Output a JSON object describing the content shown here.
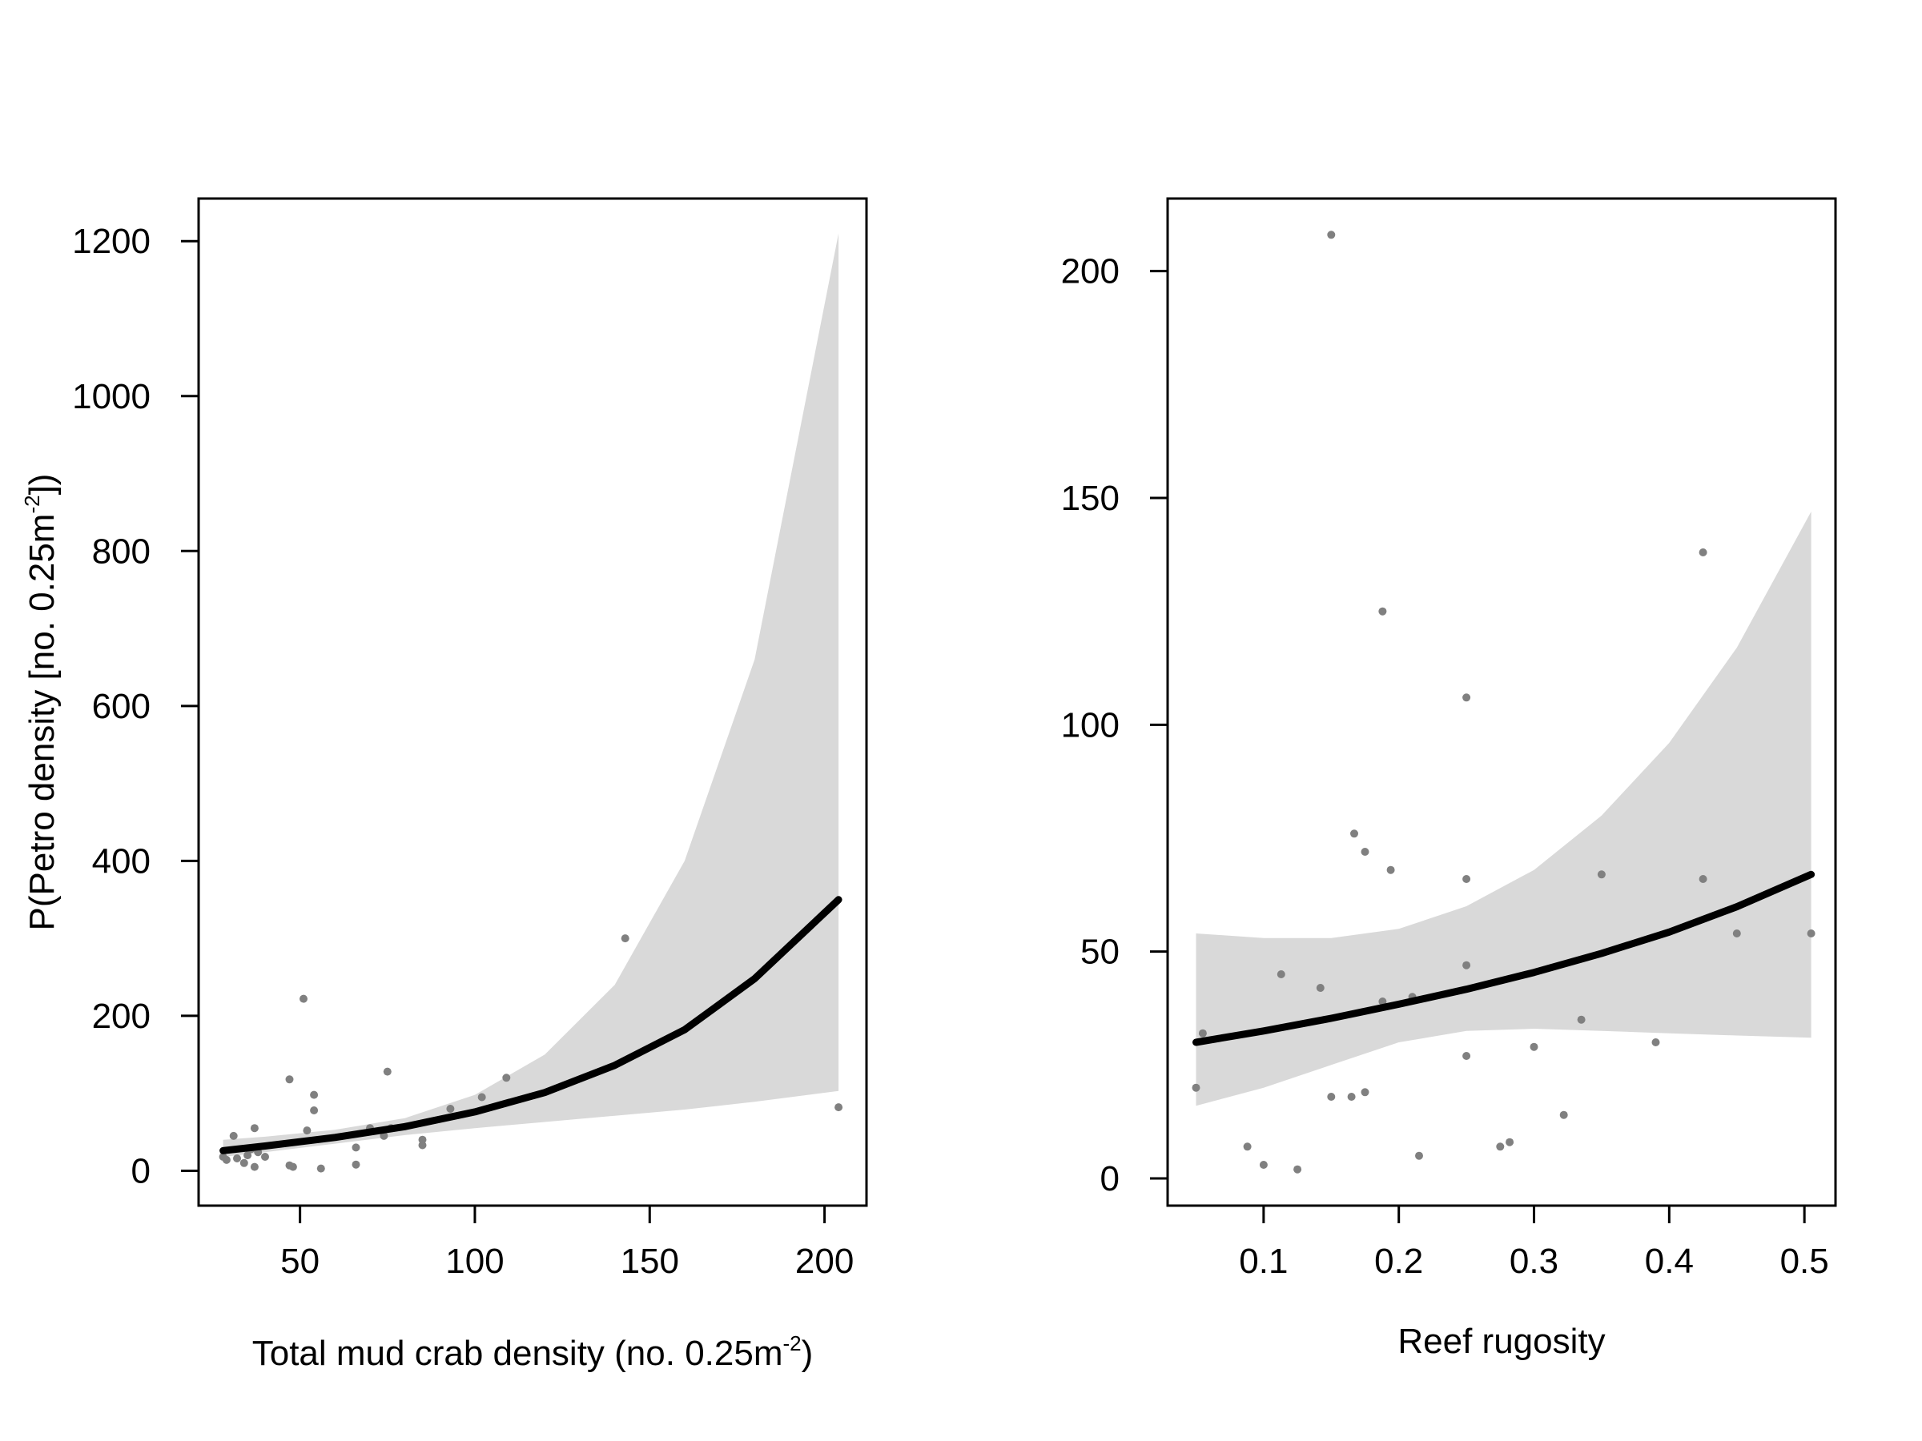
{
  "colors": {
    "band": "#d9d9d9",
    "points": "#808080",
    "curve": "#000000"
  },
  "chart_data": [
    {
      "type": "scatter",
      "title": "",
      "xlabel": "Total mud crab density  (no. 0.25m",
      "xlabel_sup": "-2",
      "xlabel_end": ")",
      "ylabel": "P(Petro density [no. 0.25m",
      "ylabel_sup": "-2",
      "ylabel_end": "])",
      "xlim": [
        21,
        212
      ],
      "ylim": [
        -45,
        1255
      ],
      "xticks": [
        50,
        100,
        150,
        200
      ],
      "yticks": [
        0,
        200,
        400,
        600,
        800,
        1000,
        1200
      ],
      "xtick_labels": [
        "50",
        "100",
        "150",
        "200"
      ],
      "ytick_labels": [
        "0",
        "200",
        "400",
        "600",
        "800",
        "1000",
        "1200"
      ],
      "grid": false,
      "points": [
        {
          "x": 28,
          "y": 18
        },
        {
          "x": 29,
          "y": 14
        },
        {
          "x": 31,
          "y": 45
        },
        {
          "x": 32,
          "y": 16
        },
        {
          "x": 34,
          "y": 10
        },
        {
          "x": 35,
          "y": 20
        },
        {
          "x": 36,
          "y": 28
        },
        {
          "x": 37,
          "y": 55
        },
        {
          "x": 37,
          "y": 5
        },
        {
          "x": 38,
          "y": 24
        },
        {
          "x": 40,
          "y": 18
        },
        {
          "x": 47,
          "y": 118
        },
        {
          "x": 47,
          "y": 7
        },
        {
          "x": 48,
          "y": 5
        },
        {
          "x": 51,
          "y": 222
        },
        {
          "x": 52,
          "y": 52
        },
        {
          "x": 54,
          "y": 98
        },
        {
          "x": 54,
          "y": 78
        },
        {
          "x": 56,
          "y": 3
        },
        {
          "x": 66,
          "y": 30
        },
        {
          "x": 66,
          "y": 8
        },
        {
          "x": 70,
          "y": 55
        },
        {
          "x": 74,
          "y": 45
        },
        {
          "x": 75,
          "y": 128
        },
        {
          "x": 76,
          "y": 55
        },
        {
          "x": 85,
          "y": 40
        },
        {
          "x": 85,
          "y": 33
        },
        {
          "x": 93,
          "y": 80
        },
        {
          "x": 102,
          "y": 95
        },
        {
          "x": 109,
          "y": 120
        },
        {
          "x": 143,
          "y": 300
        },
        {
          "x": 204,
          "y": 82
        }
      ],
      "fit": {
        "x": [
          28,
          40,
          60,
          80,
          100,
          120,
          140,
          160,
          180,
          204
        ],
        "y": [
          26,
          32,
          43,
          57,
          76,
          101,
          136,
          182,
          248,
          350
        ]
      },
      "band": {
        "x": [
          28,
          40,
          60,
          80,
          100,
          120,
          140,
          160,
          180,
          204
        ],
        "lower": [
          18,
          24,
          35,
          46,
          55,
          63,
          71,
          79,
          89,
          103
        ],
        "upper": [
          40,
          44,
          53,
          68,
          98,
          150,
          240,
          400,
          660,
          1210
        ]
      }
    },
    {
      "type": "scatter",
      "title": "",
      "xlabel": "Reef rugosity",
      "ylabel": "",
      "xlim": [
        0.029,
        0.523
      ],
      "ylim": [
        -6,
        216
      ],
      "xticks": [
        0.1,
        0.2,
        0.3,
        0.4,
        0.5
      ],
      "yticks": [
        0,
        50,
        100,
        150,
        200
      ],
      "xtick_labels": [
        "0.1",
        "0.2",
        "0.3",
        "0.4",
        "0.5"
      ],
      "ytick_labels": [
        "0",
        "50",
        "100",
        "150",
        "200"
      ],
      "grid": false,
      "points": [
        {
          "x": 0.05,
          "y": 20
        },
        {
          "x": 0.055,
          "y": 32
        },
        {
          "x": 0.088,
          "y": 7
        },
        {
          "x": 0.1,
          "y": 3
        },
        {
          "x": 0.113,
          "y": 45
        },
        {
          "x": 0.125,
          "y": 2
        },
        {
          "x": 0.142,
          "y": 42
        },
        {
          "x": 0.15,
          "y": 208
        },
        {
          "x": 0.15,
          "y": 18
        },
        {
          "x": 0.165,
          "y": 18
        },
        {
          "x": 0.167,
          "y": 76
        },
        {
          "x": 0.175,
          "y": 72
        },
        {
          "x": 0.175,
          "y": 19
        },
        {
          "x": 0.188,
          "y": 125
        },
        {
          "x": 0.188,
          "y": 39
        },
        {
          "x": 0.194,
          "y": 68
        },
        {
          "x": 0.21,
          "y": 40
        },
        {
          "x": 0.215,
          "y": 5
        },
        {
          "x": 0.25,
          "y": 106
        },
        {
          "x": 0.25,
          "y": 66
        },
        {
          "x": 0.25,
          "y": 47
        },
        {
          "x": 0.25,
          "y": 27
        },
        {
          "x": 0.275,
          "y": 7
        },
        {
          "x": 0.282,
          "y": 8
        },
        {
          "x": 0.3,
          "y": 29
        },
        {
          "x": 0.322,
          "y": 14
        },
        {
          "x": 0.335,
          "y": 35
        },
        {
          "x": 0.35,
          "y": 67
        },
        {
          "x": 0.39,
          "y": 30
        },
        {
          "x": 0.425,
          "y": 138
        },
        {
          "x": 0.425,
          "y": 66
        },
        {
          "x": 0.45,
          "y": 54
        },
        {
          "x": 0.505,
          "y": 54
        }
      ],
      "fit": {
        "x": [
          0.05,
          0.1,
          0.15,
          0.2,
          0.25,
          0.3,
          0.35,
          0.4,
          0.45,
          0.505
        ],
        "y": [
          30,
          32.5,
          35.3,
          38.4,
          41.7,
          45.4,
          49.6,
          54.3,
          59.9,
          67
        ]
      },
      "band": {
        "x": [
          0.05,
          0.1,
          0.15,
          0.2,
          0.25,
          0.3,
          0.35,
          0.4,
          0.45,
          0.505
        ],
        "lower": [
          16,
          20,
          25,
          30,
          32.5,
          33,
          32.5,
          32,
          31.5,
          31
        ],
        "upper": [
          54,
          53,
          53,
          55,
          60,
          68,
          80,
          96,
          117,
          147
        ]
      }
    }
  ]
}
